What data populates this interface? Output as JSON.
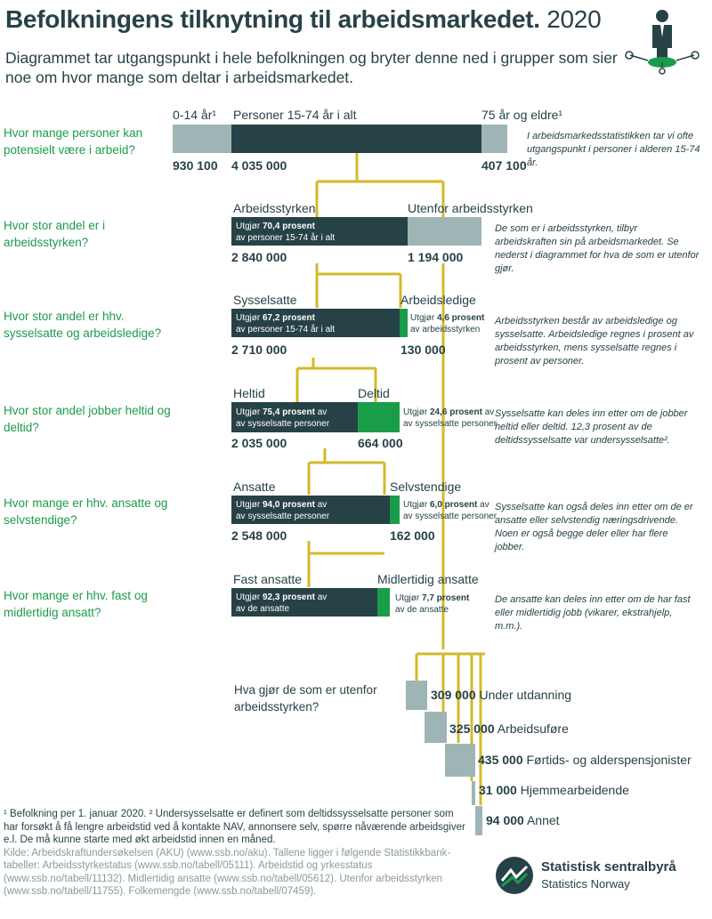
{
  "title": {
    "main": "Befolkningens tilknytning til arbeidsmarkedet.",
    "year": "2020"
  },
  "subtitle": "Diagrammet tar utgangspunkt i hele befolkningen og bryter denne ned i grupper som sier noe om hvor mange som deltar i arbeidsmarkedet.",
  "colors": {
    "dark": "#274247",
    "grey": "#9fb5b5",
    "green": "#1a9d49",
    "connector": "#d4b92a"
  },
  "rows": [
    {
      "question": "Hvor mange personer kan potensielt være i arbeid?",
      "labels": {
        "left": "0-14 år¹",
        "middle": "Personer 15-74 år i alt",
        "right": "75 år og eldre¹"
      },
      "values": {
        "left": "930 100",
        "middle": "4 035 000",
        "right": "407 100"
      },
      "share": {
        "left": 930100,
        "middle": 4035000,
        "right": 407100
      },
      "note": "I arbeidsmarkedsstatistikken tar vi ofte utgangspunkt i personer i alderen 15-74 år."
    },
    {
      "question": "Hvor stor andel er i arbeidsstyrken?",
      "labels": {
        "left": "Arbeidsstyrken",
        "right": "Utenfor arbeidsstyrken"
      },
      "values": {
        "left": "2 840 000",
        "right": "1 194 000"
      },
      "inbar": {
        "prefix": "Utgjør ",
        "bold": "70,4 prosent",
        "suffix": "av personer 15-74 år i alt"
      },
      "share_pct": 70.4,
      "note": "De som er i arbeidsstyrken, tilbyr arbeidskraften sin på arbeidsmarkedet. Se nederst i diagrammet for hva de som er utenfor gjør."
    },
    {
      "question": "Hvor stor andel er hhv. sysselsatte og arbeidsledige?",
      "labels": {
        "left": "Sysselsatte",
        "right": "Arbeidsledige"
      },
      "values": {
        "left": "2 710 000",
        "right": "130 000"
      },
      "inbar": {
        "prefix": "Utgjør ",
        "bold": "67,2 prosent",
        "suffix": "av personer 15-74 år i alt"
      },
      "outbar": {
        "prefix": "Utgjør ",
        "bold": "4,6 prosent",
        "suffix": "av arbeidsstyrken"
      },
      "share_pct": 95.4,
      "note": "Arbeidsstyrken består av arbeidsledige og sysselsatte. Arbeidsledige regnes i prosent av arbeidsstyrken, mens sysselsatte regnes i prosent av personer."
    },
    {
      "question": "Hvor stor andel jobber heltid og deltid?",
      "labels": {
        "left": "Heltid",
        "right": "Deltid"
      },
      "values": {
        "left": "2 035 000",
        "right": "664 000"
      },
      "inbar": {
        "prefix": "Utgjør ",
        "bold": "75,4 prosent",
        "suffix": "av sysselsatte personer"
      },
      "outbar": {
        "prefix": "Utgjør ",
        "bold": "24,6 prosent",
        "suffix": "av sysselsatte personer"
      },
      "share_pct": 75.4,
      "note": "Sysselsatte kan deles inn etter om de jobber heltid eller deltid. 12,3 prosent av de deltidssysselsatte var undersysselsatte²."
    },
    {
      "question": "Hvor mange er hhv. ansatte og selvstendige?",
      "labels": {
        "left": "Ansatte",
        "right": "Selvstendige"
      },
      "values": {
        "left": "2 548 000",
        "right": "162 000"
      },
      "inbar": {
        "prefix": "Utgjør ",
        "bold": "94,0 prosent",
        "suffix": "av sysselsatte personer"
      },
      "outbar": {
        "prefix": "Utgjør ",
        "bold": "6,0 prosent",
        "suffix": "av sysselsatte personer"
      },
      "share_pct": 94.0,
      "note": "Sysselsatte kan også deles inn etter om de er ansatte eller selvstendig næringsdrivende. Noen er også begge deler eller har flere jobber."
    },
    {
      "question": "Hvor mange er hhv. fast og midlertidig ansatt?",
      "labels": {
        "left": "Fast ansatte",
        "right": "Midlertidig ansatte"
      },
      "inbar": {
        "prefix": "Utgjør ",
        "bold": "92,3 prosent",
        "suffix": "av de ansatte"
      },
      "outbar": {
        "prefix": "Utgjør ",
        "bold": "7,7 prosent",
        "suffix": "av de ansatte"
      },
      "share_pct": 92.3,
      "note": "De ansatte kan deles inn etter om de har fast eller midlertidig jobb (vikarer, ekstrahjelp, m.m.)."
    }
  ],
  "outside": {
    "question": "Hva gjør de som er utenfor arbeidsstyrken?",
    "items": [
      {
        "value": "309 000",
        "label": "Under utdanning",
        "amount": 309000
      },
      {
        "value": "325 000",
        "label": "Arbeidsuføre",
        "amount": 325000
      },
      {
        "value": "435 000",
        "label": "Førtids- og alderspensjonister",
        "amount": 435000
      },
      {
        "value": "31 000",
        "label": "Hjemmearbeidende",
        "amount": 31000
      },
      {
        "value": "94 000",
        "label": "Annet",
        "amount": 94000
      }
    ]
  },
  "footnotes": {
    "notes": "¹ Befolkning per 1. januar 2020. ² Undersysselsatte er definert som deltidssysselsatte personer som har forsøkt å få lengre arbeidstid ved å kontakte NAV, annonsere selv, spørre nåværende arbeidsgiver e.l. De må kunne starte med økt arbeidstid innen en måned.",
    "source": "Kilde: Arbeidskraftundersøkelsen (AKU) (www.ssb.no/aku). Tallene ligger i følgende Statistikkbank-tabeller: Arbeidsstyrkestatus (www.ssb.no/tabell/05111). Arbeidstid og yrkesstatus (www.ssb.no/tabell/11132). Midlertidig ansatte (www.ssb.no/tabell/05612). Utenfor arbeidsstyrken (www.ssb.no/tabell/11755). Folkemengde (www.ssb.no/tabell/07459)."
  },
  "logo": {
    "name": "Statistisk sentralbyrå",
    "english": "Statistics Norway"
  },
  "icons": {
    "header": "person-network-icon",
    "logo": "ssb-logo-icon"
  }
}
